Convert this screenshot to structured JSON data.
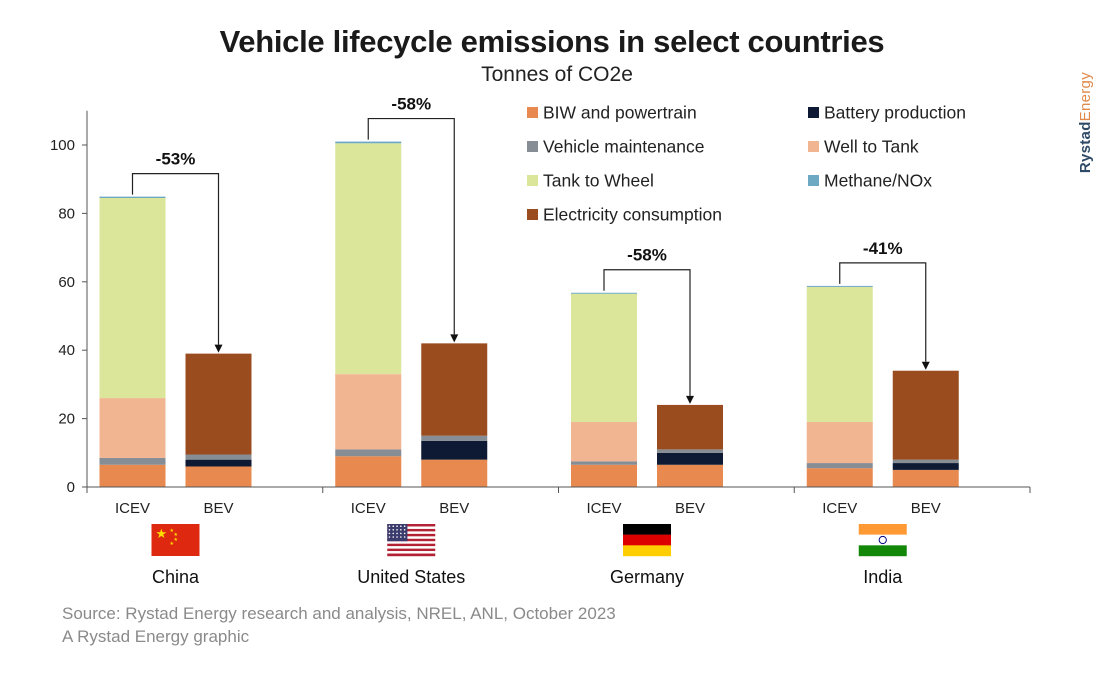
{
  "title": "Vehicle lifecycle emissions in select countries",
  "subtitle": "Tonnes of CO2e",
  "brand": {
    "part1": "Rystad",
    "part2": "Energy"
  },
  "source": "Source: Rystad Energy research and analysis, NREL, ANL, October 2023",
  "credit": "A Rystad Energy graphic",
  "chart_data": {
    "type": "bar",
    "stacked": true,
    "ylim": [
      0,
      110
    ],
    "yticks": [
      0,
      20,
      40,
      60,
      80,
      100
    ],
    "legend_position": "top-right",
    "categories": [
      "China",
      "United States",
      "Germany",
      "India"
    ],
    "bar_labels": [
      "ICEV",
      "BEV"
    ],
    "flags": [
      "china-flag-icon",
      "usa-flag-icon",
      "germany-flag-icon",
      "india-flag-icon"
    ],
    "series": [
      {
        "name": "BIW and powertrain",
        "color": "#e8894f",
        "values": [
          [
            6.5,
            6
          ],
          [
            9,
            8
          ],
          [
            6.5,
            6.5
          ],
          [
            5.5,
            5
          ]
        ]
      },
      {
        "name": "Battery production",
        "color": "#0e1a33",
        "values": [
          [
            0,
            2
          ],
          [
            0,
            5.5
          ],
          [
            0,
            3.5
          ],
          [
            0,
            2
          ]
        ]
      },
      {
        "name": "Vehicle maintenance",
        "color": "#868d95",
        "values": [
          [
            2,
            1.5
          ],
          [
            2,
            1.5
          ],
          [
            1,
            1
          ],
          [
            1.5,
            1
          ]
        ]
      },
      {
        "name": "Well to Tank",
        "color": "#f2b592",
        "values": [
          [
            17.5,
            0
          ],
          [
            22,
            0
          ],
          [
            11.5,
            0
          ],
          [
            12,
            0
          ]
        ]
      },
      {
        "name": "Tank to Wheel",
        "color": "#dce69a",
        "values": [
          [
            58.5,
            0
          ],
          [
            67.5,
            0
          ],
          [
            37.5,
            0
          ],
          [
            39.5,
            0
          ]
        ]
      },
      {
        "name": "Methane/NOx",
        "color": "#6ea9c4",
        "values": [
          [
            0.4,
            0
          ],
          [
            0.5,
            0
          ],
          [
            0.3,
            0
          ],
          [
            0.3,
            0
          ]
        ]
      },
      {
        "name": "Electricity consumption",
        "color": "#9a4c1f",
        "values": [
          [
            0,
            29.5
          ],
          [
            0,
            27
          ],
          [
            0,
            13
          ],
          [
            0,
            26
          ]
        ]
      }
    ],
    "annotations": [
      "-53%",
      "-58%",
      "-58%",
      "-41%"
    ]
  }
}
